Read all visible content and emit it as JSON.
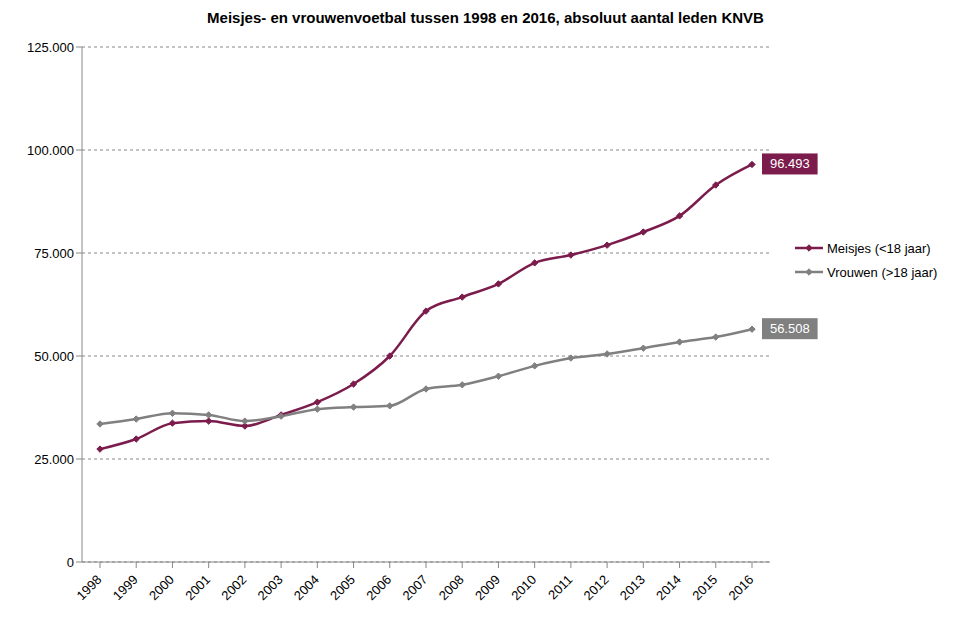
{
  "chart_data": {
    "type": "line",
    "title": "Meisjes- en vrouwenvoetbal tussen 1998 en 2016, absoluut aantal leden KNVB",
    "categories": [
      "1998",
      "1999",
      "2000",
      "2001",
      "2002",
      "2003",
      "2004",
      "2005",
      "2006",
      "2007",
      "2008",
      "2009",
      "2010",
      "2011",
      "2012",
      "2013",
      "2014",
      "2015",
      "2016"
    ],
    "series": [
      {
        "name": "Meisjes (<18 jaar)",
        "color": "#7b1c4c",
        "marker": "diamond",
        "values": [
          27400,
          29850,
          33700,
          34200,
          33000,
          35700,
          38800,
          43200,
          50000,
          60900,
          64300,
          67500,
          72600,
          74500,
          76900,
          80100,
          84000,
          91500,
          96493
        ],
        "value_labels": [
          null,
          null,
          null,
          null,
          null,
          null,
          null,
          null,
          null,
          null,
          null,
          null,
          null,
          null,
          null,
          null,
          null,
          null,
          "96.493"
        ]
      },
      {
        "name": "Vrouwen (>18 jaar)",
        "color": "#808080",
        "marker": "diamond",
        "values": [
          33500,
          34700,
          36100,
          35700,
          34200,
          35400,
          37100,
          37600,
          37900,
          42000,
          43000,
          45100,
          47600,
          49500,
          50500,
          51900,
          53400,
          54600,
          56508
        ],
        "value_labels": [
          null,
          null,
          null,
          null,
          null,
          null,
          null,
          null,
          null,
          null,
          null,
          null,
          null,
          null,
          null,
          null,
          null,
          null,
          "56.508"
        ]
      }
    ],
    "ylim": [
      0,
      125000
    ],
    "yticks": [
      0,
      {
        "value": 25000,
        "label": "25.000"
      },
      {
        "value": 50000,
        "label": "50.000"
      },
      {
        "value": 75000,
        "label": "75.000"
      },
      {
        "value": 100000,
        "label": "100.000"
      },
      {
        "value": 125000,
        "label": "125.000"
      }
    ],
    "grid": true,
    "legend": "right"
  }
}
